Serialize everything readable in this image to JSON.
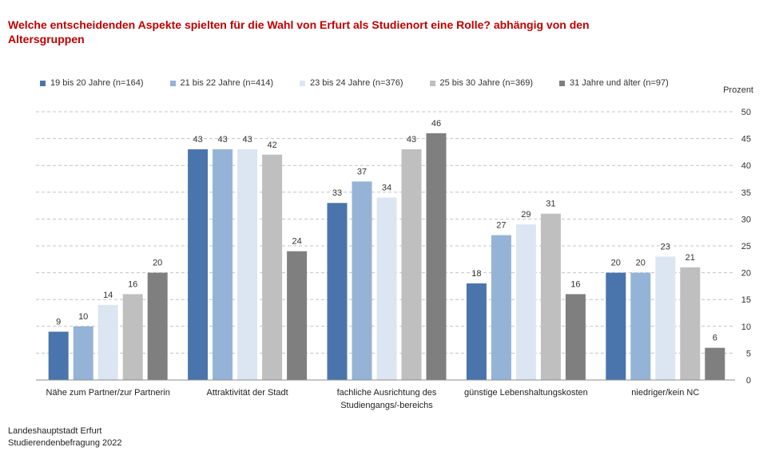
{
  "chart_data": {
    "type": "bar",
    "title": "Welche entscheidenden Aspekte spielten für die Wahl von Erfurt als Studienort eine Rolle? abhängig von den\nAltersgruppen",
    "title_color": "#c00000",
    "ylabel": "Prozent",
    "ylim": [
      0,
      50
    ],
    "yticks": [
      0,
      5,
      10,
      15,
      20,
      25,
      30,
      35,
      40,
      45,
      50
    ],
    "grid": true,
    "legend_position": "top",
    "categories": [
      "Nähe zum Partner/zur Partnerin",
      "Attraktivität der Stadt",
      "fachliche Ausrichtung des\nStudiengangs/-bereichs",
      "günstige Lebenshaltungskosten",
      "niedriger/kein NC"
    ],
    "series": [
      {
        "name": "19 bis 20 Jahre (n=164)",
        "color": "#4a75ac",
        "values": [
          9,
          43,
          33,
          18,
          20
        ]
      },
      {
        "name": "21 bis 22 Jahre (n=414)",
        "color": "#95b3d7",
        "values": [
          10,
          43,
          37,
          27,
          20
        ]
      },
      {
        "name": "23 bis 24 Jahre (n=376)",
        "color": "#dce6f2",
        "values": [
          14,
          43,
          34,
          29,
          23
        ]
      },
      {
        "name": "25 bis 30 Jahre (n=369)",
        "color": "#bfbfbf",
        "values": [
          16,
          42,
          43,
          31,
          21
        ]
      },
      {
        "name": "31 Jahre und älter (n=97)",
        "color": "#7f7f7f",
        "values": [
          20,
          24,
          46,
          16,
          6
        ]
      }
    ]
  },
  "source": {
    "line1": "Landeshauptstadt Erfurt",
    "line2": "Studierendenbefragung 2022"
  }
}
